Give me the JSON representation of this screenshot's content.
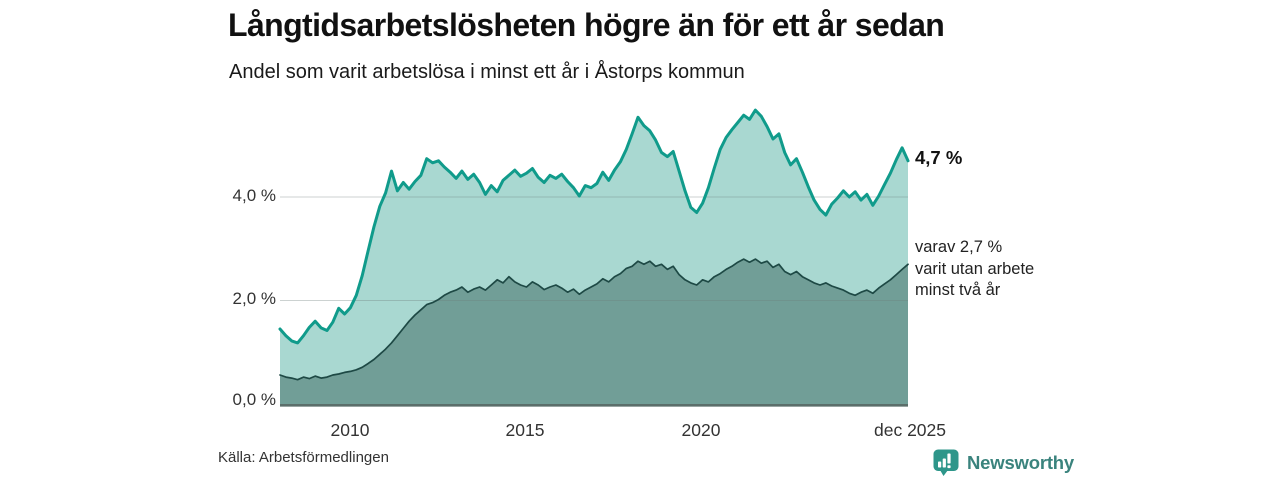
{
  "header": {
    "title": "Långtidsarbetslösheten högre än för ett år sedan",
    "subtitle": "Andel som varit arbetslösa i minst ett år i Åstorps kommun"
  },
  "chart_data": {
    "type": "area",
    "title": "Långtidsarbetslösheten högre än för ett år sedan",
    "subtitle": "Andel som varit arbetslösa i minst ett år i Åstorps kommun",
    "unit": "%",
    "x_start": 2008.0,
    "x_end": 2025.92,
    "ylim": [
      0,
      5.9
    ],
    "grid": true,
    "yticks": [
      {
        "value": 0,
        "label": "0,0 %"
      },
      {
        "value": 2,
        "label": "2,0 %"
      },
      {
        "value": 4,
        "label": "4,0 %"
      }
    ],
    "xticks": [
      {
        "value": 2010,
        "label": "2010"
      },
      {
        "value": 2015,
        "label": "2015"
      },
      {
        "value": 2020,
        "label": "2020"
      },
      {
        "value": 2025.92,
        "label": "dec 2025"
      }
    ],
    "series": [
      {
        "name": "Arbetslösa minst ett år",
        "color": "#109b8b",
        "fill": "#a9d8d1",
        "last_value": 4.7,
        "values": [
          1.45,
          1.32,
          1.22,
          1.18,
          1.32,
          1.48,
          1.6,
          1.47,
          1.42,
          1.58,
          1.85,
          1.74,
          1.86,
          2.1,
          2.48,
          2.95,
          3.42,
          3.82,
          4.08,
          4.5,
          4.12,
          4.28,
          4.15,
          4.3,
          4.42,
          4.74,
          4.66,
          4.7,
          4.58,
          4.48,
          4.36,
          4.5,
          4.34,
          4.44,
          4.28,
          4.05,
          4.22,
          4.1,
          4.32,
          4.42,
          4.52,
          4.4,
          4.46,
          4.55,
          4.38,
          4.28,
          4.42,
          4.36,
          4.44,
          4.3,
          4.18,
          4.02,
          4.22,
          4.18,
          4.26,
          4.48,
          4.32,
          4.52,
          4.68,
          4.92,
          5.22,
          5.54,
          5.38,
          5.28,
          5.1,
          4.86,
          4.78,
          4.88,
          4.5,
          4.12,
          3.8,
          3.7,
          3.88,
          4.18,
          4.56,
          4.92,
          5.15,
          5.3,
          5.44,
          5.58,
          5.5,
          5.68,
          5.56,
          5.36,
          5.12,
          5.22,
          4.86,
          4.62,
          4.74,
          4.48,
          4.2,
          3.94,
          3.76,
          3.65,
          3.86,
          3.98,
          4.12,
          4.0,
          4.1,
          3.94,
          4.05,
          3.84,
          4.02,
          4.24,
          4.46,
          4.72,
          4.95,
          4.7
        ]
      },
      {
        "name": "varav utan arbete minst två år",
        "color": "#1e4945",
        "fill": "#719e97",
        "last_value": 2.7,
        "values": [
          0.56,
          0.52,
          0.5,
          0.47,
          0.52,
          0.49,
          0.54,
          0.5,
          0.52,
          0.56,
          0.58,
          0.61,
          0.63,
          0.66,
          0.71,
          0.78,
          0.86,
          0.96,
          1.06,
          1.18,
          1.32,
          1.46,
          1.6,
          1.72,
          1.82,
          1.92,
          1.96,
          2.02,
          2.1,
          2.16,
          2.2,
          2.26,
          2.16,
          2.22,
          2.26,
          2.2,
          2.3,
          2.4,
          2.34,
          2.46,
          2.36,
          2.3,
          2.26,
          2.36,
          2.3,
          2.21,
          2.26,
          2.3,
          2.24,
          2.16,
          2.22,
          2.12,
          2.2,
          2.26,
          2.32,
          2.42,
          2.36,
          2.46,
          2.52,
          2.62,
          2.66,
          2.76,
          2.7,
          2.76,
          2.66,
          2.7,
          2.6,
          2.66,
          2.5,
          2.4,
          2.34,
          2.3,
          2.4,
          2.36,
          2.46,
          2.52,
          2.6,
          2.66,
          2.74,
          2.8,
          2.74,
          2.8,
          2.72,
          2.76,
          2.64,
          2.7,
          2.56,
          2.5,
          2.56,
          2.46,
          2.4,
          2.34,
          2.3,
          2.34,
          2.28,
          2.24,
          2.2,
          2.14,
          2.1,
          2.16,
          2.2,
          2.14,
          2.24,
          2.32,
          2.4,
          2.5,
          2.6,
          2.7
        ]
      }
    ],
    "annotations": {
      "last_value_label": "4,7 %",
      "secondary_label_lines": [
        "varav 2,7 %",
        "varit utan arbete",
        "minst två år"
      ]
    },
    "baseline_color": "#5b6e6a",
    "gridline_color": "rgba(110,125,122,0.35)"
  },
  "footer": {
    "source": "Källa: Arbetsförmedlingen",
    "brand": "Newsworthy",
    "brand_color": "#3a837d",
    "brand_icon_color": "#2e968a"
  }
}
